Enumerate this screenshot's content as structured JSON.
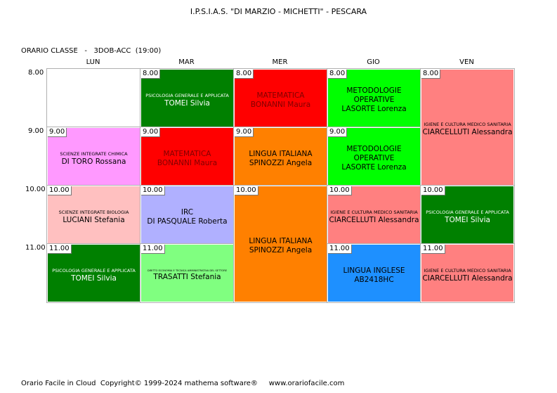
{
  "title": "I.P.S.I.A.S. \"DI MARZIO - MICHETTI\" - PESCARA",
  "classe": "ORARIO CLASSE   -   3DOB-ACC  (19:00)",
  "days": [
    "LUN",
    "MAR",
    "MER",
    "GIO",
    "VEN"
  ],
  "times": [
    "8.00",
    "9.00",
    "10.00",
    "11.00"
  ],
  "cells": [
    {
      "day": 0,
      "row": 0,
      "span": 1,
      "tag": "",
      "subject": "",
      "teacher": "",
      "color": "#ffffff",
      "text_color": "#000000",
      "subject_size": "normal"
    },
    {
      "day": 0,
      "row": 1,
      "span": 1,
      "tag": "9.00",
      "subject": "SCIENZE INTEGRATE CHIMICA",
      "teacher": "DI TORO Rossana",
      "color": "#ff99ff",
      "text_color": "#000000",
      "subject_size": "small"
    },
    {
      "day": 0,
      "row": 2,
      "span": 1,
      "tag": "10.00",
      "subject": "SCIENZE INTEGRATE  BIOLOGIA",
      "teacher": "LUCIANI Stefania",
      "color": "#ffc0c0",
      "text_color": "#000000",
      "subject_size": "small"
    },
    {
      "day": 0,
      "row": 3,
      "span": 1,
      "tag": "11.00",
      "subject": "PSICOLOGIA GENERALE E APPLICATA",
      "teacher": "TOMEI Silvia",
      "color": "#008000",
      "text_color": "#ffffff",
      "subject_size": "small"
    },
    {
      "day": 1,
      "row": 0,
      "span": 1,
      "tag": "8.00",
      "subject": "PSICOLOGIA GENERALE E APPLICATA",
      "teacher": "TOMEI Silvia",
      "color": "#008000",
      "text_color": "#ffffff",
      "subject_size": "small"
    },
    {
      "day": 1,
      "row": 1,
      "span": 1,
      "tag": "9.00",
      "subject": "MATEMATICA",
      "teacher": "BONANNI Maura",
      "color": "#ff0000",
      "text_color": "#800000",
      "subject_size": "normal"
    },
    {
      "day": 1,
      "row": 2,
      "span": 1,
      "tag": "10.00",
      "subject": "IRC",
      "teacher": "DI PASQUALE Roberta",
      "color": "#b0b0ff",
      "text_color": "#000000",
      "subject_size": "normal"
    },
    {
      "day": 1,
      "row": 3,
      "span": 1,
      "tag": "11.00",
      "subject": "DIRITTO ECONOMIA E TECNICA AMMINISTRATIVA DEL SETTORE",
      "teacher": "TRASATTI Stefania",
      "color": "#80ff80",
      "text_color": "#000000",
      "subject_size": "tiny"
    },
    {
      "day": 2,
      "row": 0,
      "span": 1,
      "tag": "8.00",
      "subject": "MATEMATICA",
      "teacher": "BONANNI Maura",
      "color": "#ff0000",
      "text_color": "#800000",
      "subject_size": "normal"
    },
    {
      "day": 2,
      "row": 1,
      "span": 1,
      "tag": "9.00",
      "subject": "LINGUA ITALIANA",
      "teacher": "SPINOZZI Angela",
      "color": "#ff8000",
      "text_color": "#000000",
      "subject_size": "normal"
    },
    {
      "day": 2,
      "row": 2,
      "span": 2,
      "tag": "10.00",
      "subject": "LINGUA ITALIANA",
      "teacher": "SPINOZZI Angela",
      "color": "#ff8000",
      "text_color": "#000000",
      "subject_size": "normal"
    },
    {
      "day": 3,
      "row": 0,
      "span": 1,
      "tag": "8.00",
      "subject": "METODOLOGIE OPERATIVE",
      "teacher": "LASORTE Lorenza",
      "color": "#00ff00",
      "text_color": "#000000",
      "subject_size": "normal"
    },
    {
      "day": 3,
      "row": 1,
      "span": 1,
      "tag": "9.00",
      "subject": "METODOLOGIE OPERATIVE",
      "teacher": "LASORTE Lorenza",
      "color": "#00ff00",
      "text_color": "#000000",
      "subject_size": "normal"
    },
    {
      "day": 3,
      "row": 2,
      "span": 1,
      "tag": "10.00",
      "subject": "IGIENE E CULTURA MEDICO SANITARIA",
      "teacher": "CIARCELLUTI Alessandra",
      "color": "#ff8080",
      "text_color": "#000000",
      "subject_size": "small"
    },
    {
      "day": 3,
      "row": 3,
      "span": 1,
      "tag": "11.00",
      "subject": "LINGUA INGLESE",
      "teacher": "AB2418HC",
      "color": "#1e90ff",
      "text_color": "#000000",
      "subject_size": "normal"
    },
    {
      "day": 4,
      "row": 0,
      "span": 2,
      "tag": "8.00",
      "subject": "IGIENE E CULTURA MEDICO SANITARIA",
      "teacher": "CIARCELLUTI Alessandra",
      "color": "#ff8080",
      "text_color": "#000000",
      "subject_size": "small"
    },
    {
      "day": 4,
      "row": 2,
      "span": 1,
      "tag": "10.00",
      "subject": "PSICOLOGIA GENERALE E APPLICATA",
      "teacher": "TOMEI Silvia",
      "color": "#008000",
      "text_color": "#ffffff",
      "subject_size": "small"
    },
    {
      "day": 4,
      "row": 3,
      "span": 1,
      "tag": "11.00",
      "subject": "IGIENE E CULTURA MEDICO SANITARIA",
      "teacher": "CIARCELLUTI Alessandra",
      "color": "#ff8080",
      "text_color": "#000000",
      "subject_size": "small"
    }
  ],
  "footer": "Orario Facile in Cloud  Copyright© 1999-2024 mathema software®     www.orariofacile.com"
}
